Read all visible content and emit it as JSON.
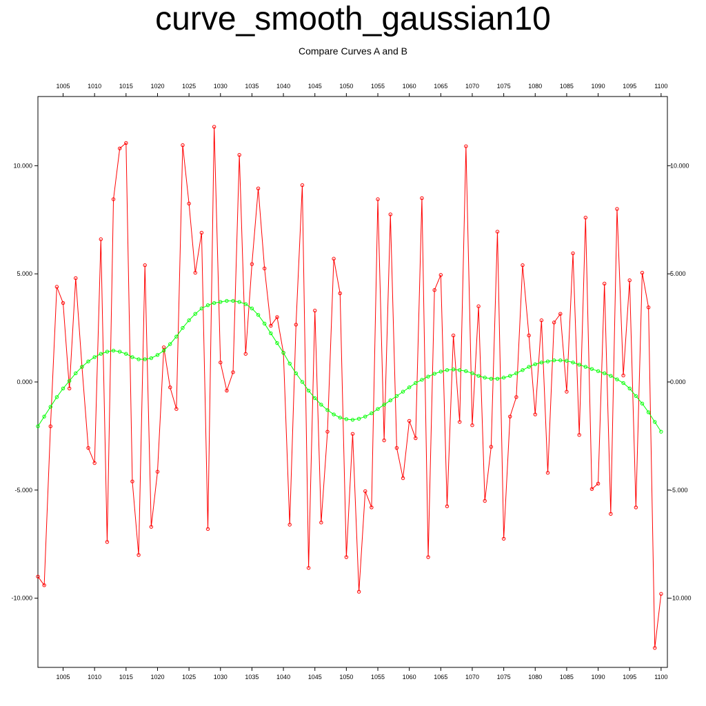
{
  "chart_data": {
    "type": "line",
    "title": "curve_smooth_gaussian10",
    "subtitle": "Compare Curves A and B",
    "xlabel": "",
    "ylabel": "",
    "xlim": [
      1001,
      1101
    ],
    "ylim": [
      -13.2,
      13.2
    ],
    "x_ticks": [
      1005,
      1010,
      1015,
      1020,
      1025,
      1030,
      1035,
      1040,
      1045,
      1050,
      1055,
      1060,
      1065,
      1070,
      1075,
      1080,
      1085,
      1090,
      1095,
      1100
    ],
    "y_ticks": [
      -10,
      -5,
      0,
      5,
      10
    ],
    "y_tick_labels": [
      "-10.000",
      "-5.000",
      "0.000",
      "5.000",
      "10.000"
    ],
    "grid": false,
    "x_start": 1001,
    "x_step": 1,
    "series": [
      {
        "color": "#ff0000",
        "values": [
          -9.0,
          -9.4,
          -2.05,
          4.4,
          3.65,
          -0.3,
          4.8,
          0.7,
          -3.05,
          -3.75,
          6.6,
          -7.4,
          8.45,
          10.8,
          11.05,
          -4.6,
          -8.0,
          5.4,
          -6.7,
          -4.15,
          1.6,
          -0.25,
          -1.25,
          10.95,
          8.25,
          5.05,
          6.9,
          -6.8,
          11.8,
          0.9,
          -0.4,
          0.45,
          10.5,
          1.3,
          5.45,
          8.95,
          5.25,
          2.6,
          3.0,
          1.35,
          -6.6,
          2.65,
          9.1,
          -8.6,
          3.3,
          -6.5,
          -2.3,
          5.7,
          4.1,
          -8.1,
          -2.4,
          -9.7,
          -5.05,
          -5.8,
          8.45,
          -2.7,
          7.75,
          -3.05,
          -4.45,
          -1.8,
          -2.6,
          8.5,
          -8.1,
          4.25,
          4.95,
          -5.75,
          2.15,
          -1.85,
          10.9,
          -2.0,
          3.5,
          -5.5,
          -3.0,
          6.95,
          -7.25,
          -1.6,
          -0.7,
          5.4,
          2.15,
          -1.5,
          2.85,
          -4.2,
          2.75,
          3.15,
          -0.45,
          5.95,
          -2.45,
          7.6,
          -4.95,
          -4.7,
          4.55,
          -6.1,
          8.0,
          0.3,
          4.7,
          -5.8,
          5.05,
          3.45,
          -12.3,
          -9.8
        ]
      },
      {
        "color": "#00ff00",
        "values": [
          -2.05,
          -1.6,
          -1.15,
          -0.7,
          -0.3,
          0.05,
          0.4,
          0.7,
          0.95,
          1.15,
          1.3,
          1.4,
          1.45,
          1.4,
          1.3,
          1.15,
          1.05,
          1.05,
          1.1,
          1.25,
          1.45,
          1.75,
          2.1,
          2.5,
          2.85,
          3.15,
          3.4,
          3.55,
          3.65,
          3.7,
          3.75,
          3.75,
          3.7,
          3.6,
          3.4,
          3.1,
          2.7,
          2.25,
          1.8,
          1.35,
          0.85,
          0.4,
          0.0,
          -0.4,
          -0.75,
          -1.05,
          -1.3,
          -1.5,
          -1.65,
          -1.72,
          -1.75,
          -1.7,
          -1.6,
          -1.45,
          -1.25,
          -1.05,
          -0.85,
          -0.65,
          -0.45,
          -0.25,
          -0.05,
          0.1,
          0.25,
          0.38,
          0.48,
          0.55,
          0.58,
          0.55,
          0.5,
          0.4,
          0.28,
          0.2,
          0.15,
          0.15,
          0.2,
          0.28,
          0.4,
          0.55,
          0.7,
          0.82,
          0.9,
          0.95,
          1.0,
          1.0,
          0.98,
          0.9,
          0.8,
          0.7,
          0.6,
          0.5,
          0.4,
          0.28,
          0.12,
          -0.05,
          -0.3,
          -0.65,
          -1.0,
          -1.4,
          -1.85,
          -2.3
        ]
      }
    ]
  }
}
